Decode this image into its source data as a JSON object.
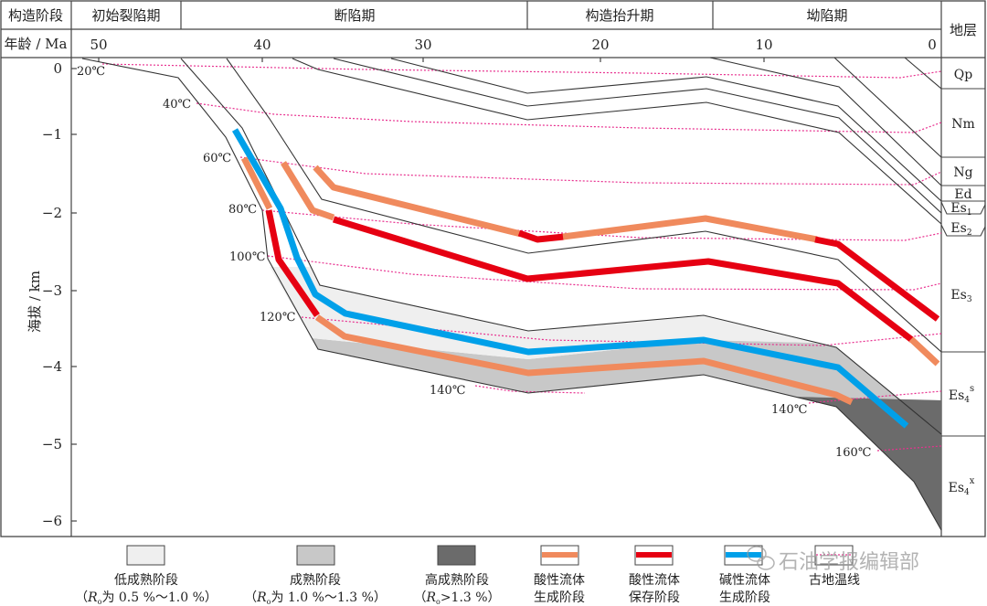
{
  "header": {
    "stage_label": "构造阶段",
    "age_label": "年龄 / Ma",
    "strata_label": "地层",
    "stages": [
      "初始裂陷期",
      "断陷期",
      "构造抬升期",
      "坳陷期"
    ],
    "ages": [
      "50",
      "40",
      "30",
      "20",
      "10",
      "0"
    ]
  },
  "y_axis": {
    "label": "海拔 / km",
    "ticks": [
      "0",
      "−1",
      "−2",
      "−3",
      "−4",
      "−5",
      "−6"
    ]
  },
  "isotherms": [
    "20℃",
    "40℃",
    "60℃",
    "80℃",
    "100℃",
    "120℃",
    "140℃",
    "140℃",
    "160℃"
  ],
  "strata": [
    {
      "base": "Qp",
      "sub": "",
      "sup": ""
    },
    {
      "base": "Nm",
      "sub": "",
      "sup": ""
    },
    {
      "base": "Ng",
      "sub": "",
      "sup": ""
    },
    {
      "base": "Ed",
      "sub": "",
      "sup": ""
    },
    {
      "base": "Es",
      "sub": "1",
      "sup": ""
    },
    {
      "base": "Es",
      "sub": "2",
      "sup": ""
    },
    {
      "base": "Es",
      "sub": "3",
      "sup": ""
    },
    {
      "base": "Es",
      "sub": "4",
      "sup": "s"
    },
    {
      "base": "Es",
      "sub": "4",
      "sup": "x"
    }
  ],
  "legend": [
    {
      "line1": "低成熟阶段",
      "line2a": "（",
      "ro": "R",
      "rosub": "o",
      "line2b": "为 0.5 %～1.0 %）",
      "color": "#efefef"
    },
    {
      "line1": "成熟阶段",
      "line2a": "（",
      "ro": "R",
      "rosub": "o",
      "line2b": "为 1.0 %～1.3 %）",
      "color": "#c8c8c8"
    },
    {
      "line1": "高成熟阶段",
      "line2a": "（",
      "ro": "R",
      "rosub": "o",
      "line2b": ">1.3 %）",
      "color": "#6b6b6b"
    },
    {
      "line1": "酸性流体",
      "line2": "生成阶段",
      "color": "#f08a5d"
    },
    {
      "line1": "酸性流体",
      "line2": "保存阶段",
      "color": "#e60012"
    },
    {
      "line1": "碱性流体",
      "line2": "生成阶段",
      "color": "#00a0e9"
    },
    {
      "line1": "古地温线",
      "color": "#e8308f"
    }
  ],
  "watermark": "石油学报编辑部"
}
